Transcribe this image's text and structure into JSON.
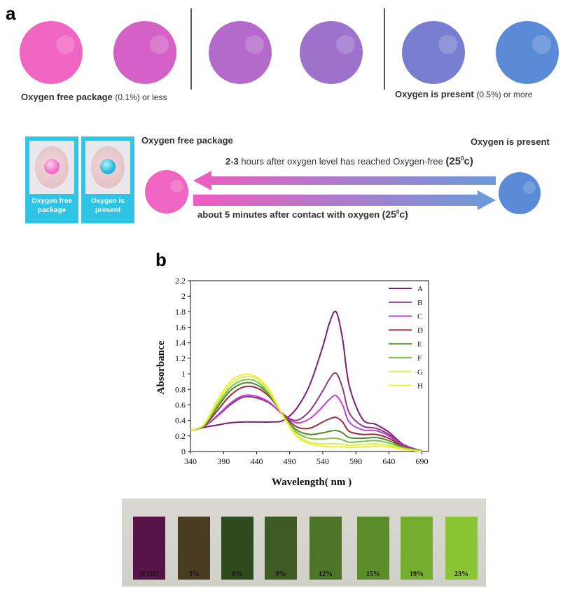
{
  "panel_a": {
    "label": "a",
    "top_row": {
      "left_caption_main": "Oxygen free package",
      "left_caption_small": "(0.1%) or less",
      "right_caption_main": "Oxygen is present",
      "right_caption_small": "(0.5%) or more",
      "circle_colors": [
        "#f065c2",
        "#d462c6",
        "#b46acb",
        "#9d72cc",
        "#7a7ed0",
        "#5b8ad6"
      ]
    },
    "cards": [
      {
        "label": "Oxygen free\npackage",
        "dot_color": "#f06cc8"
      },
      {
        "label": "Oxygen is\npresent",
        "dot_color": "#22b8d6"
      }
    ],
    "transition": {
      "left_title": "Oxygen free package",
      "right_title": "Oxygen is present",
      "top_arrow_bold": "2-3",
      "top_arrow_text": "hours after oxygen level has reached Oxygen-free",
      "top_arrow_temp": "(25",
      "top_arrow_temp_sup": "0",
      "top_arrow_temp_end": "c)",
      "bottom_arrow_text": "about 5 minutes after contact with oxygen",
      "bottom_arrow_temp": "(25",
      "bottom_arrow_temp_sup": "0",
      "bottom_arrow_temp_end": "c)",
      "left_circle_color": "#f065c2",
      "right_circle_color": "#5b8ad6"
    }
  },
  "panel_b": {
    "label": "b"
  },
  "chart_data": {
    "type": "line",
    "xlabel": "Wavelength( nm )",
    "ylabel": "Absorbance",
    "xlim": [
      340,
      700
    ],
    "ylim": [
      0,
      2.2
    ],
    "xticks": [
      340,
      390,
      440,
      490,
      540,
      590,
      640,
      690
    ],
    "yticks": [
      0,
      0.2,
      0.4,
      0.6,
      0.8,
      1,
      1.2,
      1.4,
      1.6,
      1.8,
      2,
      2.2
    ],
    "ytick_labels": [
      "0",
      "0.2",
      "0.4",
      "0.6",
      "0.8",
      "1",
      "1.2",
      "1.4",
      "1.6",
      "1.8",
      "2",
      "2.2"
    ],
    "grid": false,
    "legend_position": "top-right",
    "x": [
      340,
      360,
      380,
      400,
      420,
      440,
      460,
      480,
      500,
      520,
      540,
      550,
      560,
      570,
      580,
      600,
      620,
      640,
      660,
      680,
      690
    ],
    "series": [
      {
        "name": "A",
        "color": "#7a1f74",
        "values": [
          0.27,
          0.31,
          0.34,
          0.37,
          0.38,
          0.38,
          0.38,
          0.4,
          0.55,
          0.85,
          1.35,
          1.65,
          1.8,
          1.45,
          0.85,
          0.42,
          0.35,
          0.25,
          0.1,
          0.03,
          0.01
        ]
      },
      {
        "name": "B",
        "color": "#8e3a80",
        "values": [
          0.27,
          0.32,
          0.45,
          0.6,
          0.7,
          0.69,
          0.62,
          0.48,
          0.4,
          0.52,
          0.78,
          0.93,
          1.01,
          0.82,
          0.5,
          0.33,
          0.3,
          0.22,
          0.09,
          0.03,
          0.01
        ]
      },
      {
        "name": "C",
        "color": "#c040d8",
        "values": [
          0.27,
          0.32,
          0.46,
          0.62,
          0.72,
          0.71,
          0.63,
          0.47,
          0.37,
          0.42,
          0.58,
          0.67,
          0.72,
          0.6,
          0.38,
          0.28,
          0.27,
          0.2,
          0.08,
          0.02,
          0.01
        ]
      },
      {
        "name": "D",
        "color": "#9b2d3a",
        "values": [
          0.27,
          0.33,
          0.52,
          0.72,
          0.83,
          0.82,
          0.7,
          0.48,
          0.32,
          0.3,
          0.38,
          0.42,
          0.44,
          0.38,
          0.26,
          0.22,
          0.22,
          0.17,
          0.07,
          0.02,
          0.01
        ]
      },
      {
        "name": "E",
        "color": "#4f8a2b",
        "values": [
          0.27,
          0.33,
          0.56,
          0.78,
          0.88,
          0.86,
          0.72,
          0.47,
          0.28,
          0.22,
          0.24,
          0.26,
          0.27,
          0.24,
          0.18,
          0.17,
          0.18,
          0.14,
          0.06,
          0.02,
          0.01
        ]
      },
      {
        "name": "F",
        "color": "#7cc243",
        "values": [
          0.27,
          0.34,
          0.59,
          0.82,
          0.92,
          0.9,
          0.73,
          0.46,
          0.25,
          0.17,
          0.16,
          0.17,
          0.17,
          0.15,
          0.12,
          0.13,
          0.14,
          0.11,
          0.05,
          0.02,
          0.01
        ]
      },
      {
        "name": "G",
        "color": "#d7ef5a",
        "values": [
          0.27,
          0.34,
          0.62,
          0.86,
          0.96,
          0.94,
          0.76,
          0.46,
          0.22,
          0.12,
          0.1,
          0.1,
          0.1,
          0.09,
          0.08,
          0.09,
          0.1,
          0.08,
          0.04,
          0.01,
          0.0
        ]
      },
      {
        "name": "H",
        "color": "#f1ef2c",
        "values": [
          0.27,
          0.35,
          0.65,
          0.9,
          0.99,
          0.96,
          0.78,
          0.46,
          0.2,
          0.1,
          0.07,
          0.06,
          0.06,
          0.06,
          0.05,
          0.06,
          0.07,
          0.06,
          0.03,
          0.01,
          0.0
        ]
      }
    ]
  },
  "strips": [
    {
      "label": "[CO2]",
      "color": "#561449"
    },
    {
      "label": "3%",
      "color": "#4a3c22"
    },
    {
      "label": "6%",
      "color": "#2f4a1d"
    },
    {
      "label": "9%",
      "color": "#3c5a22"
    },
    {
      "label": "12%",
      "color": "#4e7527"
    },
    {
      "label": "15%",
      "color": "#5a8c2a"
    },
    {
      "label": "19%",
      "color": "#74ad2f"
    },
    {
      "label": "23%",
      "color": "#8cc534"
    }
  ]
}
